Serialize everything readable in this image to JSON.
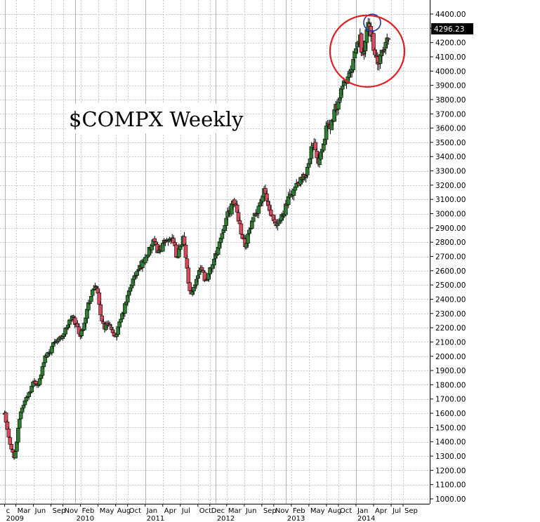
{
  "chart_data": {
    "type": "candlestick",
    "title": "$COMPX Weekly",
    "last_price": "4296.23",
    "y_ticks": [
      "1000.00",
      "1100.00",
      "1200.00",
      "1300.00",
      "1400.00",
      "1500.00",
      "1600.00",
      "1700.00",
      "1800.00",
      "1900.00",
      "2000.00",
      "2100.00",
      "2200.00",
      "2300.00",
      "2400.00",
      "2500.00",
      "2600.00",
      "2700.00",
      "2800.00",
      "2900.00",
      "3000.00",
      "3100.00",
      "3200.00",
      "3300.00",
      "3400.00",
      "3500.00",
      "3600.00",
      "3700.00",
      "3800.00",
      "3900.00",
      "4000.00",
      "4100.00",
      "4200.00",
      "4300.00",
      "4400.00"
    ],
    "ylim": [
      950,
      4450
    ],
    "month_ticks": [
      {
        "label": "c",
        "t": 2009.0
      },
      {
        "label": "Mar",
        "t": 2009.16
      },
      {
        "label": "Jun",
        "t": 2009.41
      },
      {
        "label": "Sep",
        "t": 2009.66
      },
      {
        "label": "Nov",
        "t": 2009.83
      },
      {
        "label": "Feb",
        "t": 2010.08
      },
      {
        "label": "May",
        "t": 2010.33
      },
      {
        "label": "Aug",
        "t": 2010.58
      },
      {
        "label": "Oct",
        "t": 2010.75
      },
      {
        "label": "Jan",
        "t": 2011.0
      },
      {
        "label": "Apr",
        "t": 2011.25
      },
      {
        "label": "Jul",
        "t": 2011.5
      },
      {
        "label": "Oct",
        "t": 2011.75
      },
      {
        "label": "Dec",
        "t": 2011.92
      },
      {
        "label": "Mar",
        "t": 2012.16
      },
      {
        "label": "Jun",
        "t": 2012.41
      },
      {
        "label": "Sep",
        "t": 2012.66
      },
      {
        "label": "Nov",
        "t": 2012.83
      },
      {
        "label": "Feb",
        "t": 2013.08
      },
      {
        "label": "May",
        "t": 2013.33
      },
      {
        "label": "Aug",
        "t": 2013.58
      },
      {
        "label": "Oct",
        "t": 2013.75
      },
      {
        "label": "Jan",
        "t": 2014.0
      },
      {
        "label": "Apr",
        "t": 2014.25
      },
      {
        "label": "Jul",
        "t": 2014.5
      },
      {
        "label": "Sep",
        "t": 2014.67
      }
    ],
    "year_ticks": [
      {
        "label": "2009",
        "t": 2009.0
      },
      {
        "label": "2010",
        "t": 2010.0
      },
      {
        "label": "2011",
        "t": 2011.0
      },
      {
        "label": "2012",
        "t": 2012.0
      },
      {
        "label": "2013",
        "t": 2013.0
      },
      {
        "label": "2014",
        "t": 2014.0
      }
    ],
    "xlim": [
      2008.95,
      2014.82
    ],
    "path": [
      [
        2009.0,
        1590
      ],
      [
        2009.06,
        1420
      ],
      [
        2009.14,
        1280
      ],
      [
        2009.18,
        1430
      ],
      [
        2009.22,
        1600
      ],
      [
        2009.3,
        1700
      ],
      [
        2009.36,
        1760
      ],
      [
        2009.42,
        1830
      ],
      [
        2009.48,
        1800
      ],
      [
        2009.52,
        1880
      ],
      [
        2009.58,
        2000
      ],
      [
        2009.66,
        2050
      ],
      [
        2009.72,
        2120
      ],
      [
        2009.78,
        2120
      ],
      [
        2009.84,
        2160
      ],
      [
        2009.9,
        2220
      ],
      [
        2009.96,
        2280
      ],
      [
        2010.04,
        2200
      ],
      [
        2010.08,
        2140
      ],
      [
        2010.14,
        2260
      ],
      [
        2010.2,
        2380
      ],
      [
        2010.26,
        2460
      ],
      [
        2010.3,
        2520
      ],
      [
        2010.36,
        2300
      ],
      [
        2010.42,
        2200
      ],
      [
        2010.48,
        2240
      ],
      [
        2010.52,
        2180
      ],
      [
        2010.56,
        2120
      ],
      [
        2010.62,
        2200
      ],
      [
        2010.68,
        2300
      ],
      [
        2010.74,
        2400
      ],
      [
        2010.8,
        2500
      ],
      [
        2010.86,
        2570
      ],
      [
        2010.92,
        2620
      ],
      [
        2011.0,
        2690
      ],
      [
        2011.08,
        2760
      ],
      [
        2011.12,
        2800
      ],
      [
        2011.18,
        2740
      ],
      [
        2011.24,
        2770
      ],
      [
        2011.3,
        2810
      ],
      [
        2011.36,
        2840
      ],
      [
        2011.42,
        2760
      ],
      [
        2011.46,
        2680
      ],
      [
        2011.5,
        2790
      ],
      [
        2011.54,
        2820
      ],
      [
        2011.58,
        2700
      ],
      [
        2011.62,
        2470
      ],
      [
        2011.66,
        2410
      ],
      [
        2011.7,
        2500
      ],
      [
        2011.74,
        2560
      ],
      [
        2011.78,
        2640
      ],
      [
        2011.82,
        2600
      ],
      [
        2011.86,
        2520
      ],
      [
        2011.92,
        2600
      ],
      [
        2012.0,
        2700
      ],
      [
        2012.06,
        2800
      ],
      [
        2012.12,
        2920
      ],
      [
        2012.18,
        3000
      ],
      [
        2012.24,
        3060
      ],
      [
        2012.28,
        3080
      ],
      [
        2012.32,
        2980
      ],
      [
        2012.38,
        2850
      ],
      [
        2012.42,
        2780
      ],
      [
        2012.48,
        2880
      ],
      [
        2012.54,
        2950
      ],
      [
        2012.6,
        3040
      ],
      [
        2012.66,
        3110
      ],
      [
        2012.7,
        3160
      ],
      [
        2012.74,
        3070
      ],
      [
        2012.78,
        3000
      ],
      [
        2012.84,
        2920
      ],
      [
        2012.88,
        2900
      ],
      [
        2012.94,
        2980
      ],
      [
        2013.0,
        3050
      ],
      [
        2013.08,
        3140
      ],
      [
        2013.16,
        3200
      ],
      [
        2013.24,
        3240
      ],
      [
        2013.3,
        3300
      ],
      [
        2013.36,
        3450
      ],
      [
        2013.42,
        3480
      ],
      [
        2013.46,
        3360
      ],
      [
        2013.52,
        3480
      ],
      [
        2013.58,
        3600
      ],
      [
        2013.64,
        3620
      ],
      [
        2013.7,
        3720
      ],
      [
        2013.76,
        3800
      ],
      [
        2013.82,
        3900
      ],
      [
        2013.88,
        3950
      ],
      [
        2013.94,
        4000
      ],
      [
        2014.0,
        4160
      ],
      [
        2014.06,
        4230
      ],
      [
        2014.1,
        4080
      ],
      [
        2014.14,
        4240
      ],
      [
        2014.18,
        4330
      ],
      [
        2014.22,
        4260
      ],
      [
        2014.26,
        4150
      ],
      [
        2014.3,
        4030
      ],
      [
        2014.34,
        4080
      ],
      [
        2014.38,
        4130
      ],
      [
        2014.42,
        4180
      ],
      [
        2014.46,
        4250
      ],
      [
        2014.48,
        4296.23
      ]
    ],
    "annotations": [
      {
        "shape": "circle",
        "t": 2014.23,
        "v": 4340,
        "color": "#2233cc"
      },
      {
        "shape": "ellipse",
        "t": 2014.16,
        "v": 4140,
        "color": "#e02020"
      }
    ],
    "colors": {
      "up_filled": "#2e7d32",
      "up_hollow": "#b7e4b0",
      "down_filled": "#d84a5e",
      "down_hollow": "#5fe0f0",
      "grid": "#c8c8c8",
      "price_box": "#000000"
    }
  }
}
